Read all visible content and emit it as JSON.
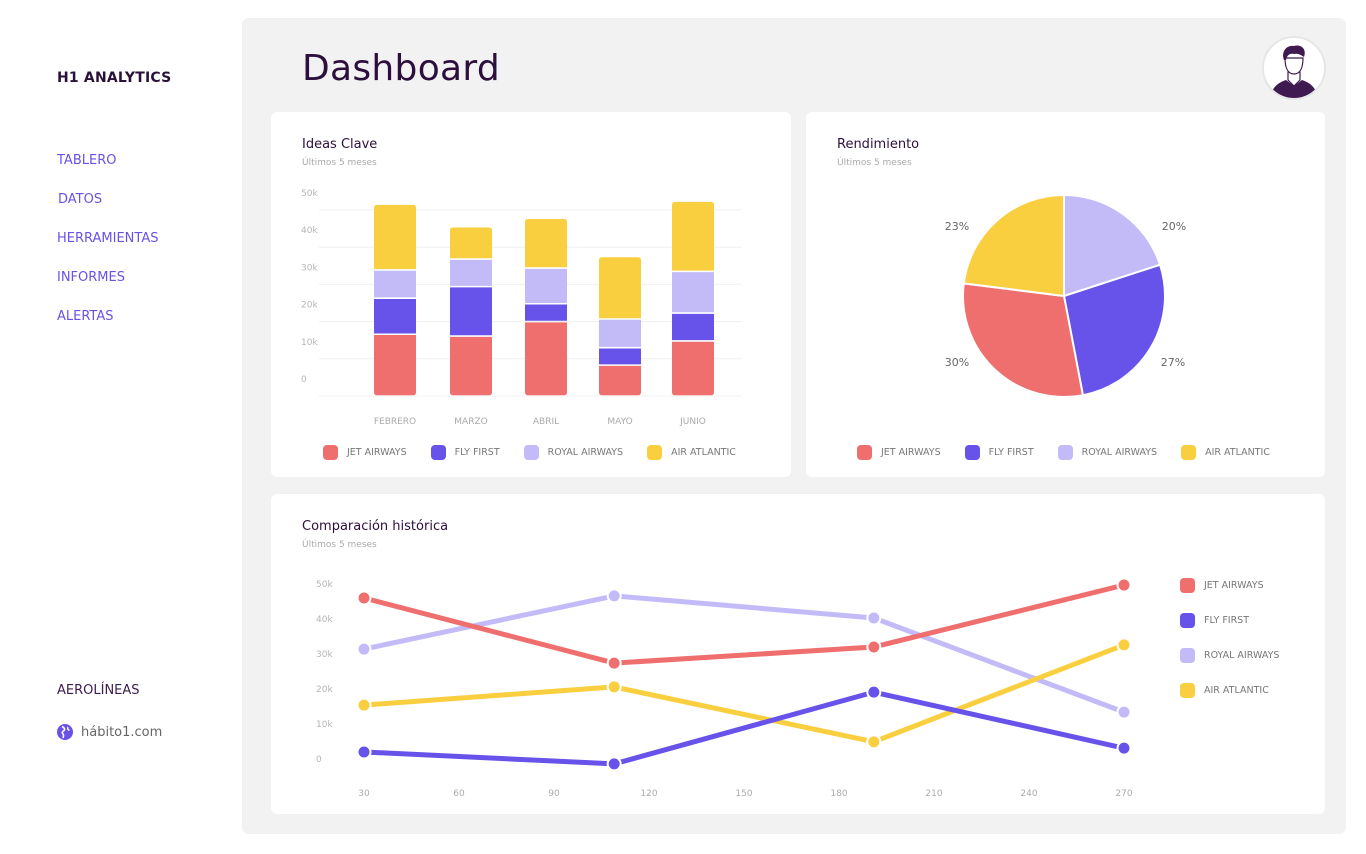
{
  "sidebar": {
    "brand": "H1 ANALYTICS",
    "nav": [
      "TABLERO",
      "DATOS",
      "HERRAMIENTAS",
      "INFORMES",
      "ALERTAS"
    ],
    "footer_title": "AEROLÍNEAS",
    "footer_link": "hábito1.com",
    "footer_icon": "globe-icon"
  },
  "header": {
    "title": "Dashboard",
    "avatar_icon": "user-avatar-icon"
  },
  "colors": {
    "jet_airways": "#ef6f6f",
    "fly_first": "#6752ea",
    "royal_airways": "#c3bbf8",
    "air_atlantic": "#f9cf40",
    "accent": "#6a52e8",
    "title": "#2d0f3d"
  },
  "legend": [
    {
      "label": "JET AIRWAYS",
      "key": "jet_airways"
    },
    {
      "label": "FLY FIRST",
      "key": "fly_first"
    },
    {
      "label": "ROYAL AIRWAYS",
      "key": "royal_airways"
    },
    {
      "label": "AIR ATLANTIC",
      "key": "air_atlantic"
    }
  ],
  "cards": {
    "bar": {
      "title": "Ideas Clave",
      "subtitle": "Últimos 5 meses"
    },
    "pie": {
      "title": "Rendimiento",
      "subtitle": "Últimos 5 meses"
    },
    "line": {
      "title": "Comparación histórica",
      "subtitle": "Últimos 5 meses"
    }
  },
  "chart_data": [
    {
      "type": "bar",
      "stacked": true,
      "title": "Ideas Clave",
      "subtitle": "Últimos 5 meses",
      "categories": [
        "FEBRERO",
        "MARZO",
        "ABRIL",
        "MAYO",
        "JUNIO"
      ],
      "yticks": [
        "0",
        "10k",
        "20k",
        "30k",
        "40k",
        "50k"
      ],
      "ylim": [
        0,
        50000
      ],
      "grid": true,
      "legend_position": "bottom",
      "series": [
        {
          "name": "JET AIRWAYS",
          "key": "jet_airways",
          "values": [
            16600,
            16100,
            20000,
            8300,
            14800
          ]
        },
        {
          "name": "FLY FIRST",
          "key": "fly_first",
          "values": [
            9700,
            13300,
            4800,
            4700,
            7500
          ]
        },
        {
          "name": "ROYAL AIRWAYS",
          "key": "royal_airways",
          "values": [
            7600,
            7400,
            9600,
            7700,
            11200
          ]
        },
        {
          "name": "AIR ATLANTIC",
          "key": "air_atlantic",
          "values": [
            17700,
            8700,
            13400,
            16800,
            18900
          ]
        }
      ]
    },
    {
      "type": "pie",
      "title": "Rendimiento",
      "subtitle": "Últimos 5 meses",
      "legend_position": "bottom",
      "start": "top-clockwise",
      "slices": [
        {
          "name": "ROYAL AIRWAYS",
          "key": "royal_airways",
          "value": 20,
          "label": "20%"
        },
        {
          "name": "FLY FIRST",
          "key": "fly_first",
          "value": 27,
          "label": "27%"
        },
        {
          "name": "JET AIRWAYS",
          "key": "jet_airways",
          "value": 30,
          "label": "30%"
        },
        {
          "name": "AIR ATLANTIC",
          "key": "air_atlantic",
          "value": 23,
          "label": "23%"
        }
      ]
    },
    {
      "type": "line",
      "title": "Comparación histórica",
      "subtitle": "Últimos 5 meses",
      "xticks": [
        "30",
        "60",
        "90",
        "120",
        "150",
        "180",
        "210",
        "240",
        "270"
      ],
      "xlim": [
        30,
        270
      ],
      "yticks": [
        "0",
        "10k",
        "20k",
        "30k",
        "40k",
        "50k"
      ],
      "ylim": [
        0,
        50000
      ],
      "grid": false,
      "legend_position": "right",
      "x": [
        30,
        109,
        191,
        270
      ],
      "series": [
        {
          "name": "JET AIRWAYS",
          "key": "jet_airways",
          "values": [
            46000,
            27400,
            32000,
            49700
          ]
        },
        {
          "name": "FLY FIRST",
          "key": "fly_first",
          "values": [
            2000,
            -1400,
            19100,
            3100
          ]
        },
        {
          "name": "ROYAL AIRWAYS",
          "key": "royal_airways",
          "values": [
            31400,
            46600,
            40300,
            13400
          ]
        },
        {
          "name": "AIR ATLANTIC",
          "key": "air_atlantic",
          "values": [
            15400,
            20600,
            4900,
            32600
          ]
        }
      ]
    }
  ]
}
